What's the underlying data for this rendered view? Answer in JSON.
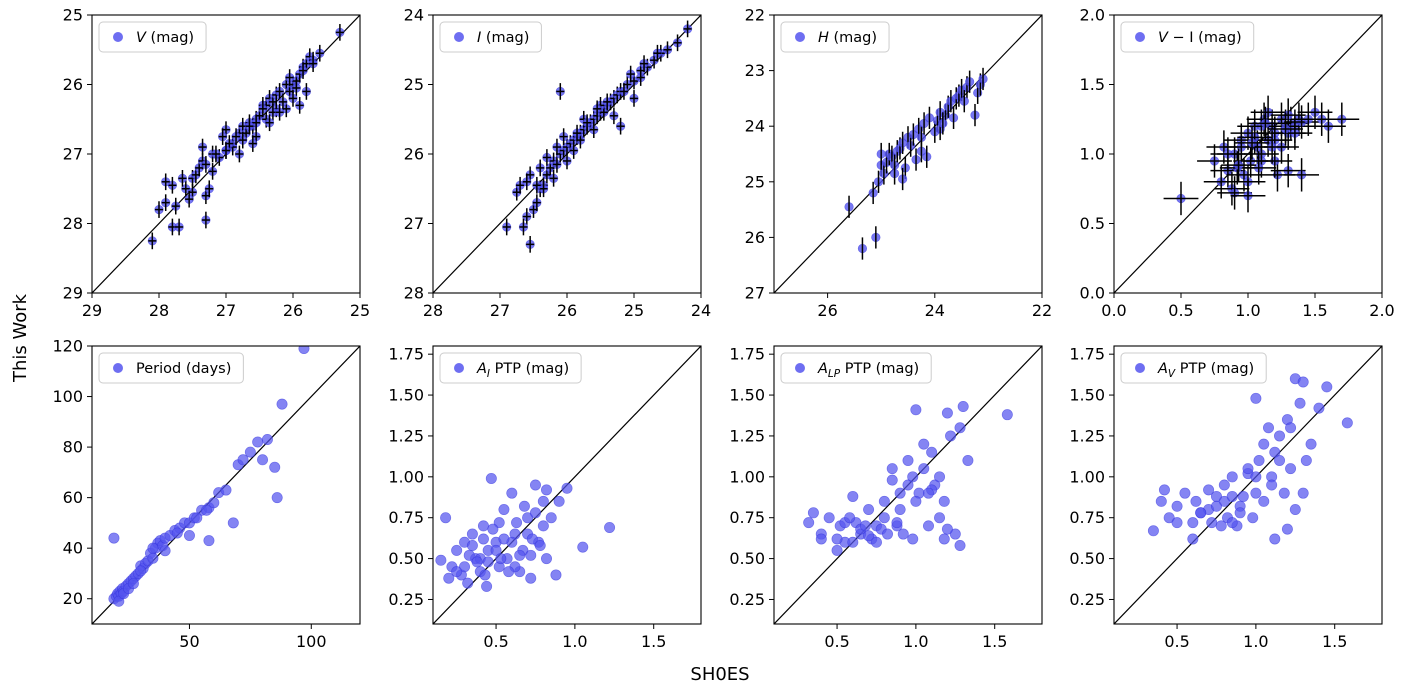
{
  "figure": {
    "xlabel": "SH0ES",
    "ylabel": "This Work",
    "marker_color": "#5555ee",
    "marker_edge": "#3333dd",
    "errorbar_color": "#000000",
    "line_color": "#000000"
  },
  "chart_data": [
    {
      "type": "scatter",
      "name": "V (mag)",
      "legend_var": "V",
      "legend_sub": "",
      "legend_text": " (mag)",
      "xlim": [
        29,
        25
      ],
      "ylim": [
        29,
        25
      ],
      "xticks": [
        29,
        28,
        27,
        26,
        25
      ],
      "yticks": [
        25,
        26,
        27,
        28,
        29
      ],
      "tick_decimals": 0,
      "errorbars": true,
      "xerr": 0.06,
      "yerr": 0.12,
      "x": [
        28.1,
        28.0,
        27.9,
        27.75,
        27.8,
        27.7,
        27.6,
        27.5,
        27.45,
        27.4,
        27.35,
        27.3,
        27.3,
        27.2,
        27.1,
        27.0,
        27.0,
        26.9,
        26.8,
        26.75,
        26.7,
        26.65,
        26.6,
        26.55,
        26.5,
        26.45,
        26.4,
        26.35,
        26.3,
        26.25,
        26.2,
        26.1,
        26.05,
        26.0,
        25.95,
        25.9,
        25.85,
        25.8,
        25.75,
        25.7,
        25.6,
        25.3,
        27.8,
        27.5,
        27.3,
        27.05,
        26.9,
        26.75,
        26.55,
        26.4,
        26.25,
        26.1,
        25.95,
        25.8,
        27.65,
        27.2,
        26.95,
        26.65,
        26.3,
        26.0,
        25.85,
        27.9,
        27.55,
        27.25,
        27.0,
        26.8,
        26.55,
        26.35,
        26.15,
        25.9,
        27.35,
        27.15,
        26.85,
        26.6,
        26.45,
        26.2,
        26.05,
        25.7
      ],
      "y": [
        28.25,
        27.8,
        27.7,
        27.75,
        28.05,
        28.05,
        27.5,
        27.35,
        27.3,
        27.2,
        27.1,
        27.95,
        27.6,
        27.0,
        27.05,
        26.95,
        26.65,
        26.85,
        26.7,
        26.6,
        26.7,
        26.55,
        26.6,
        26.5,
        26.45,
        26.3,
        26.3,
        26.2,
        26.25,
        26.15,
        26.1,
        26.0,
        26.1,
        26.0,
        25.95,
        25.85,
        25.75,
        25.7,
        25.6,
        25.65,
        25.55,
        25.25,
        27.45,
        27.55,
        27.15,
        26.75,
        26.9,
        26.8,
        26.55,
        26.5,
        26.35,
        26.35,
        26.05,
        26.1,
        27.35,
        27.25,
        26.85,
        26.6,
        26.4,
        26.2,
        25.8,
        27.4,
        27.65,
        27.5,
        26.95,
        27.0,
        26.75,
        26.55,
        26.25,
        26.3,
        26.9,
        27.0,
        26.75,
        26.85,
        26.35,
        26.4,
        25.9,
        25.7
      ]
    },
    {
      "type": "scatter",
      "name": "I (mag)",
      "legend_var": "I",
      "legend_sub": "",
      "legend_text": " (mag)",
      "xlim": [
        28,
        24
      ],
      "ylim": [
        28,
        24
      ],
      "xticks": [
        28,
        27,
        26,
        25,
        24
      ],
      "yticks": [
        24,
        25,
        26,
        27,
        28
      ],
      "tick_decimals": 0,
      "errorbars": true,
      "xerr": 0.06,
      "yerr": 0.12,
      "x": [
        26.9,
        26.75,
        26.6,
        26.5,
        26.65,
        26.55,
        26.45,
        26.4,
        26.35,
        26.3,
        26.25,
        26.2,
        26.15,
        26.1,
        26.05,
        26.0,
        25.95,
        25.9,
        25.85,
        25.8,
        25.75,
        25.7,
        25.65,
        25.6,
        25.55,
        25.5,
        25.45,
        25.4,
        25.35,
        25.3,
        25.25,
        25.2,
        25.1,
        25.0,
        24.9,
        24.8,
        24.7,
        24.6,
        24.5,
        24.35,
        24.2,
        26.55,
        26.3,
        26.2,
        26.05,
        25.9,
        25.75,
        25.6,
        25.45,
        25.3,
        25.15,
        25.0,
        24.85,
        26.7,
        26.4,
        26.1,
        25.8,
        25.5,
        25.2,
        24.9,
        24.65,
        26.6,
        26.35,
        26.0,
        25.7,
        25.4,
        26.45,
        26.15,
        25.85,
        25.55,
        25.05
      ],
      "y": [
        27.05,
        26.55,
        26.9,
        26.8,
        27.05,
        27.3,
        26.7,
        26.5,
        26.45,
        26.3,
        26.2,
        26.1,
        26.15,
        26.0,
        25.95,
        25.9,
        25.85,
        25.8,
        25.75,
        25.7,
        25.65,
        25.6,
        25.55,
        25.5,
        25.45,
        25.4,
        25.35,
        25.3,
        25.25,
        25.2,
        25.15,
        25.1,
        25.0,
        24.95,
        24.8,
        24.75,
        24.65,
        24.55,
        24.5,
        24.4,
        24.2,
        26.3,
        26.05,
        26.35,
        25.75,
        25.95,
        25.5,
        25.65,
        25.4,
        25.45,
        25.1,
        25.2,
        24.7,
        26.45,
        26.2,
        25.1,
        25.8,
        25.3,
        25.6,
        24.9,
        24.55,
        26.4,
        26.5,
        26.1,
        25.55,
        25.25,
        26.45,
        25.9,
        25.7,
        25.35,
        24.85
      ]
    },
    {
      "type": "scatter",
      "name": "H (mag)",
      "legend_var": "H",
      "legend_sub": "",
      "legend_text": " (mag)",
      "xlim": [
        27,
        22
      ],
      "ylim": [
        27,
        22
      ],
      "xticks": [
        26,
        24,
        22
      ],
      "yticks": [
        22,
        23,
        24,
        25,
        26,
        27
      ],
      "tick_decimals": 0,
      "errorbars": true,
      "xerr": 0.0,
      "yerr": 0.2,
      "x": [
        25.6,
        25.35,
        25.15,
        25.1,
        25.0,
        24.95,
        24.9,
        24.85,
        24.8,
        24.75,
        24.7,
        24.65,
        24.6,
        24.5,
        24.45,
        24.4,
        24.3,
        24.25,
        24.2,
        24.1,
        24.0,
        23.95,
        23.9,
        23.8,
        23.75,
        23.7,
        23.6,
        23.55,
        23.5,
        23.4,
        23.35,
        23.2,
        23.15,
        23.1,
        25.05,
        24.75,
        24.55,
        24.35,
        24.15,
        23.9,
        23.65,
        23.45,
        25.0,
        24.6,
        24.25,
        23.85,
        23.25
      ],
      "y": [
        25.45,
        26.2,
        25.2,
        26.0,
        24.7,
        24.85,
        24.65,
        24.5,
        24.55,
        24.7,
        24.45,
        24.4,
        24.3,
        24.2,
        24.35,
        24.15,
        24.05,
        24.2,
        23.95,
        23.85,
        24.1,
        23.9,
        23.75,
        23.8,
        23.65,
        23.55,
        23.5,
        23.45,
        23.35,
        23.3,
        23.2,
        23.4,
        23.25,
        23.15,
        25.0,
        24.85,
        24.75,
        24.6,
        24.55,
        24.05,
        23.85,
        23.55,
        24.5,
        24.95,
        24.45,
        23.95,
        23.8
      ]
    },
    {
      "type": "scatter",
      "name": "V − I (mag)",
      "legend_var": "V",
      "legend_sub": "",
      "legend_text": " − I (mag)",
      "xlim": [
        0,
        2
      ],
      "ylim": [
        0,
        2
      ],
      "xticks": [
        0.0,
        0.5,
        1.0,
        1.5,
        2.0
      ],
      "yticks": [
        0.0,
        0.5,
        1.0,
        1.5,
        2.0
      ],
      "tick_decimals": 1,
      "errorbars": true,
      "xerr": 0.13,
      "yerr": 0.12,
      "x": [
        0.5,
        0.75,
        0.8,
        0.82,
        0.85,
        0.88,
        0.9,
        0.92,
        0.95,
        0.97,
        1.0,
        1.02,
        1.05,
        1.07,
        1.1,
        1.12,
        1.15,
        1.18,
        1.2,
        1.22,
        1.25,
        1.28,
        1.3,
        1.32,
        1.35,
        1.38,
        1.4,
        1.45,
        1.5,
        1.55,
        1.6,
        1.7,
        0.9,
        1.0,
        1.1,
        1.2,
        1.3,
        1.4,
        0.85,
        0.95,
        1.05,
        1.15,
        1.25,
        1.35,
        1.0,
        1.1,
        1.2,
        1.3,
        1.08,
        1.18,
        1.28,
        0.93,
        1.03,
        1.13
      ],
      "y": [
        0.68,
        0.95,
        0.8,
        1.05,
        0.88,
        0.75,
        1.0,
        0.9,
        1.1,
        0.85,
        1.15,
        0.95,
        1.2,
        1.05,
        1.0,
        1.25,
        1.1,
        1.2,
        1.15,
        0.85,
        1.25,
        1.2,
        1.15,
        1.22,
        1.2,
        1.25,
        1.23,
        1.25,
        1.3,
        1.25,
        1.2,
        1.25,
        0.72,
        0.8,
        0.95,
        1.1,
        0.88,
        0.85,
        1.0,
        1.05,
        1.12,
        1.3,
        1.05,
        1.15,
        0.7,
        1.2,
        0.95,
        1.28,
        0.9,
        1.05,
        1.18,
        0.92,
        1.08,
        1.22
      ]
    },
    {
      "type": "scatter",
      "name": "Period (days)",
      "legend_var": "",
      "legend_sub": "",
      "legend_text": "Period (days)",
      "xlim": [
        10,
        120
      ],
      "ylim": [
        10,
        120
      ],
      "xticks": [
        50,
        100
      ],
      "yticks": [
        20,
        40,
        60,
        80,
        100,
        120
      ],
      "tick_decimals": 0,
      "errorbars": false,
      "x": [
        19,
        20,
        20.5,
        21,
        21.5,
        22,
        22.5,
        23,
        24,
        25,
        26,
        27,
        28,
        29,
        30,
        31,
        32,
        33,
        34,
        35,
        36,
        37,
        38,
        39,
        40,
        42,
        44,
        46,
        48,
        50,
        52,
        55,
        58,
        60,
        62,
        65,
        68,
        70,
        72,
        75,
        78,
        80,
        82,
        85,
        86,
        88,
        97,
        19,
        35,
        50,
        58,
        21,
        23,
        25,
        27,
        30,
        40,
        45,
        53,
        57
      ],
      "y": [
        20,
        21,
        22,
        21,
        23,
        22,
        24,
        23,
        25,
        26,
        27,
        28,
        29,
        30,
        33,
        32,
        34,
        35,
        38,
        36,
        40,
        42,
        43,
        41,
        44,
        45,
        47,
        48,
        50,
        50,
        52,
        55,
        56,
        58,
        62,
        63,
        50,
        73,
        75,
        78,
        82,
        75,
        83,
        72,
        60,
        97,
        119,
        44,
        40,
        45,
        43,
        19,
        22,
        24,
        26,
        31,
        39,
        46,
        52,
        55
      ]
    },
    {
      "type": "scatter",
      "name": "A_I PTP (mag)",
      "legend_var": "A",
      "legend_sub": "I",
      "legend_text": " PTP (mag)",
      "xlim": [
        0.1,
        1.8
      ],
      "ylim": [
        0.1,
        1.8
      ],
      "xticks": [
        0.5,
        1.0,
        1.5
      ],
      "yticks": [
        0.25,
        0.5,
        0.75,
        1.0,
        1.25,
        1.5,
        1.75
      ],
      "tick_decimals": 2,
      "xtick_decimals": 1,
      "errorbars": false,
      "x": [
        0.15,
        0.18,
        0.2,
        0.22,
        0.25,
        0.28,
        0.3,
        0.32,
        0.35,
        0.37,
        0.4,
        0.42,
        0.44,
        0.45,
        0.47,
        0.5,
        0.52,
        0.55,
        0.57,
        0.6,
        0.62,
        0.65,
        0.67,
        0.7,
        0.72,
        0.75,
        0.77,
        0.8,
        0.82,
        0.85,
        0.88,
        0.9,
        0.95,
        1.05,
        1.22,
        0.3,
        0.4,
        0.5,
        0.6,
        0.7,
        0.8,
        0.35,
        0.45,
        0.55,
        0.65,
        0.75,
        0.42,
        0.52,
        0.62,
        0.72,
        0.82,
        0.25,
        0.33,
        0.48,
        0.58,
        0.68,
        0.78,
        0.38,
        0.43,
        0.53,
        0.63,
        0.73
      ],
      "y": [
        0.49,
        0.75,
        0.38,
        0.45,
        0.55,
        0.4,
        0.6,
        0.35,
        0.65,
        0.5,
        0.42,
        0.7,
        0.33,
        0.55,
        0.99,
        0.6,
        0.45,
        0.8,
        0.5,
        0.9,
        0.65,
        0.42,
        0.55,
        0.75,
        0.38,
        0.95,
        0.6,
        0.85,
        0.5,
        0.75,
        0.4,
        0.85,
        0.93,
        0.57,
        0.69,
        0.45,
        0.5,
        0.55,
        0.6,
        0.65,
        0.7,
        0.58,
        0.48,
        0.62,
        0.52,
        0.78,
        0.62,
        0.72,
        0.45,
        0.52,
        0.92,
        0.42,
        0.52,
        0.68,
        0.42,
        0.82,
        0.58,
        0.48,
        0.4,
        0.5,
        0.72,
        0.62
      ]
    },
    {
      "type": "scatter",
      "name": "A_LP PTP (mag)",
      "legend_var": "A",
      "legend_sub": "LP",
      "legend_text": " PTP (mag)",
      "xlim": [
        0.1,
        1.8
      ],
      "ylim": [
        0.1,
        1.8
      ],
      "xticks": [
        0.5,
        1.0,
        1.5
      ],
      "yticks": [
        0.25,
        0.5,
        0.75,
        1.0,
        1.25,
        1.5,
        1.75
      ],
      "tick_decimals": 2,
      "xtick_decimals": 1,
      "errorbars": false,
      "x": [
        0.32,
        0.35,
        0.4,
        0.45,
        0.5,
        0.52,
        0.55,
        0.6,
        0.62,
        0.65,
        0.7,
        0.72,
        0.75,
        0.78,
        0.8,
        0.82,
        0.85,
        0.88,
        0.9,
        0.92,
        0.95,
        0.98,
        1.0,
        1.02,
        1.05,
        1.08,
        1.1,
        1.12,
        1.15,
        1.18,
        1.2,
        1.22,
        1.25,
        1.28,
        1.3,
        1.33,
        1.58,
        0.5,
        0.6,
        0.7,
        0.8,
        0.9,
        1.0,
        1.1,
        1.2,
        0.55,
        0.65,
        0.75,
        0.85,
        0.95,
        1.05,
        1.15,
        0.4,
        0.58,
        0.68,
        0.88,
        0.98,
        1.08,
        1.18,
        1.28
      ],
      "y": [
        0.72,
        0.78,
        0.65,
        0.75,
        0.55,
        0.7,
        0.6,
        0.88,
        0.72,
        0.65,
        0.8,
        0.62,
        0.7,
        0.68,
        0.85,
        0.65,
        1.05,
        0.7,
        0.9,
        0.65,
        0.95,
        0.62,
        1.41,
        0.9,
        1.05,
        0.7,
        1.15,
        0.95,
        0.75,
        0.85,
        1.39,
        1.25,
        0.65,
        1.3,
        1.43,
        1.1,
        1.38,
        0.62,
        0.6,
        0.64,
        0.75,
        0.8,
        0.85,
        0.92,
        0.68,
        0.72,
        0.68,
        0.6,
        0.98,
        1.1,
        1.2,
        1.0,
        0.62,
        0.75,
        0.7,
        0.72,
        1.0,
        0.9,
        0.62,
        0.58
      ]
    },
    {
      "type": "scatter",
      "name": "A_V PTP (mag)",
      "legend_var": "A",
      "legend_sub": "V",
      "legend_text": " PTP (mag)",
      "xlim": [
        0.1,
        1.8
      ],
      "ylim": [
        0.1,
        1.8
      ],
      "xticks": [
        0.5,
        1.0,
        1.5
      ],
      "yticks": [
        0.25,
        0.5,
        0.75,
        1.0,
        1.25,
        1.5,
        1.75
      ],
      "tick_decimals": 2,
      "xtick_decimals": 1,
      "errorbars": false,
      "x": [
        0.35,
        0.4,
        0.42,
        0.45,
        0.5,
        0.55,
        0.6,
        0.62,
        0.65,
        0.7,
        0.72,
        0.75,
        0.78,
        0.8,
        0.82,
        0.85,
        0.88,
        0.9,
        0.92,
        0.95,
        0.98,
        1.0,
        1.02,
        1.05,
        1.08,
        1.1,
        1.12,
        1.15,
        1.18,
        1.2,
        1.22,
        1.25,
        1.28,
        1.3,
        1.35,
        1.4,
        1.45,
        1.58,
        0.6,
        0.7,
        0.8,
        0.9,
        1.0,
        1.1,
        1.2,
        1.3,
        0.65,
        0.75,
        0.85,
        0.95,
        1.05,
        1.15,
        1.25,
        0.5,
        0.85,
        1.0,
        1.12,
        1.22,
        1.32
      ],
      "y": [
        0.67,
        0.85,
        0.92,
        0.75,
        0.82,
        0.9,
        0.62,
        0.85,
        0.78,
        0.92,
        0.72,
        0.88,
        0.7,
        0.95,
        0.75,
        1.0,
        0.7,
        0.82,
        0.88,
        1.02,
        0.75,
        1.48,
        1.1,
        0.85,
        1.3,
        1.0,
        1.15,
        1.25,
        0.9,
        1.35,
        1.05,
        1.6,
        1.45,
        1.58,
        1.2,
        1.42,
        1.55,
        1.33,
        0.72,
        0.8,
        0.85,
        0.78,
        0.9,
        0.95,
        0.68,
        0.9,
        0.78,
        0.82,
        0.72,
        1.05,
        1.2,
        1.1,
        0.8,
        0.72,
        0.88,
        1.0,
        0.62,
        1.3,
        1.1
      ]
    }
  ]
}
